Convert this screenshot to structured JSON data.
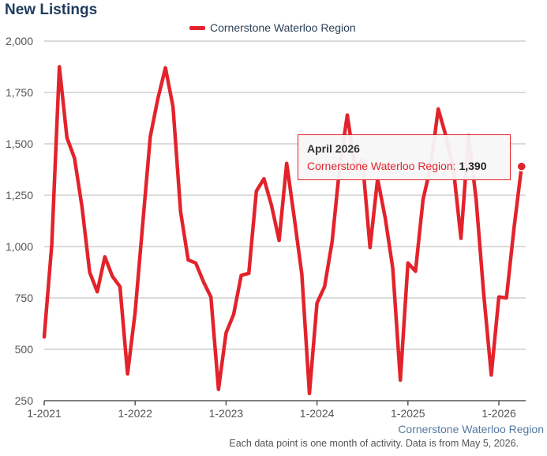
{
  "chart_data": {
    "type": "line",
    "title": "New Listings",
    "series": [
      {
        "name": "Cornerstone Waterloo Region",
        "color": "#e3232b",
        "points": [
          [
            "2021-01",
            560
          ],
          [
            "2021-02",
            1010
          ],
          [
            "2021-03",
            1875
          ],
          [
            "2021-04",
            1530
          ],
          [
            "2021-05",
            1430
          ],
          [
            "2021-06",
            1190
          ],
          [
            "2021-07",
            875
          ],
          [
            "2021-08",
            780
          ],
          [
            "2021-09",
            950
          ],
          [
            "2021-10",
            855
          ],
          [
            "2021-11",
            805
          ],
          [
            "2021-12",
            380
          ],
          [
            "2022-01",
            680
          ],
          [
            "2022-02",
            1110
          ],
          [
            "2022-03",
            1535
          ],
          [
            "2022-04",
            1720
          ],
          [
            "2022-05",
            1870
          ],
          [
            "2022-06",
            1680
          ],
          [
            "2022-07",
            1170
          ],
          [
            "2022-08",
            935
          ],
          [
            "2022-09",
            920
          ],
          [
            "2022-10",
            830
          ],
          [
            "2022-11",
            755
          ],
          [
            "2022-12",
            305
          ],
          [
            "2023-01",
            580
          ],
          [
            "2023-02",
            670
          ],
          [
            "2023-03",
            860
          ],
          [
            "2023-04",
            870
          ],
          [
            "2023-05",
            1270
          ],
          [
            "2023-06",
            1330
          ],
          [
            "2023-07",
            1200
          ],
          [
            "2023-08",
            1030
          ],
          [
            "2023-09",
            1405
          ],
          [
            "2023-10",
            1140
          ],
          [
            "2023-11",
            865
          ],
          [
            "2023-12",
            285
          ],
          [
            "2024-01",
            725
          ],
          [
            "2024-02",
            805
          ],
          [
            "2024-03",
            1025
          ],
          [
            "2024-04",
            1390
          ],
          [
            "2024-05",
            1640
          ],
          [
            "2024-06",
            1390
          ],
          [
            "2024-07",
            1420
          ],
          [
            "2024-08",
            995
          ],
          [
            "2024-09",
            1330
          ],
          [
            "2024-10",
            1140
          ],
          [
            "2024-11",
            895
          ],
          [
            "2024-12",
            350
          ],
          [
            "2025-01",
            920
          ],
          [
            "2025-02",
            880
          ],
          [
            "2025-03",
            1230
          ],
          [
            "2025-04",
            1390
          ],
          [
            "2025-05",
            1670
          ],
          [
            "2025-06",
            1540
          ],
          [
            "2025-07",
            1380
          ],
          [
            "2025-08",
            1040
          ],
          [
            "2025-09",
            1540
          ],
          [
            "2025-10",
            1230
          ],
          [
            "2025-11",
            770
          ],
          [
            "2025-12",
            375
          ],
          [
            "2026-01",
            755
          ],
          [
            "2026-02",
            750
          ],
          [
            "2026-03",
            1090
          ],
          [
            "2026-04",
            1390
          ]
        ]
      }
    ],
    "xaxis": {
      "ticks": [
        {
          "date": "2021-01",
          "label": "1-2021"
        },
        {
          "date": "2022-01",
          "label": "1-2022"
        },
        {
          "date": "2023-01",
          "label": "1-2023"
        },
        {
          "date": "2024-01",
          "label": "1-2024"
        },
        {
          "date": "2025-01",
          "label": "1-2025"
        },
        {
          "date": "2026-01",
          "label": "1-2026"
        }
      ]
    },
    "yaxis": {
      "range": [
        250,
        2000
      ],
      "ticks": [
        {
          "value": 250,
          "label": "250"
        },
        {
          "value": 500,
          "label": "500"
        },
        {
          "value": 750,
          "label": "750"
        },
        {
          "value": 1000,
          "label": "1,000"
        },
        {
          "value": 1250,
          "label": "1,250"
        },
        {
          "value": 1500,
          "label": "1,500"
        },
        {
          "value": 1750,
          "label": "1,750"
        },
        {
          "value": 2000,
          "label": "2,000"
        }
      ]
    },
    "grid": true,
    "legend": "top-center"
  },
  "tooltip": {
    "title": "April 2026",
    "series_label": "Cornerstone Waterloo Region:",
    "value": "1,390"
  },
  "credit": "Cornerstone Waterloo Region",
  "note": "Each data point is one month of activity. Data is from May 5, 2026."
}
